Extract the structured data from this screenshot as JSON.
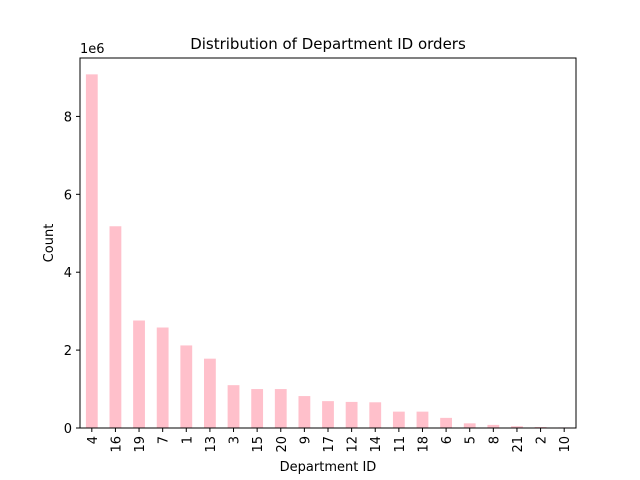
{
  "chart_data": {
    "type": "bar",
    "title": "Distribution of Department ID orders",
    "xlabel": "Department ID",
    "ylabel": "Count",
    "y_offset_label": "1e6",
    "categories": [
      "4",
      "16",
      "19",
      "7",
      "1",
      "13",
      "3",
      "15",
      "20",
      "9",
      "17",
      "12",
      "14",
      "11",
      "18",
      "6",
      "5",
      "8",
      "21",
      "2",
      "10"
    ],
    "values": [
      9080000,
      5180000,
      2760000,
      2580000,
      2120000,
      1780000,
      1100000,
      1000000,
      1000000,
      820000,
      690000,
      670000,
      660000,
      420000,
      420000,
      260000,
      120000,
      80000,
      45000,
      25000,
      15000
    ],
    "ylim": [
      0,
      9500000
    ],
    "yticks": [
      0,
      2,
      4,
      6,
      8
    ],
    "bar_color": "#ffc0cb",
    "grid": false,
    "legend": "none"
  }
}
